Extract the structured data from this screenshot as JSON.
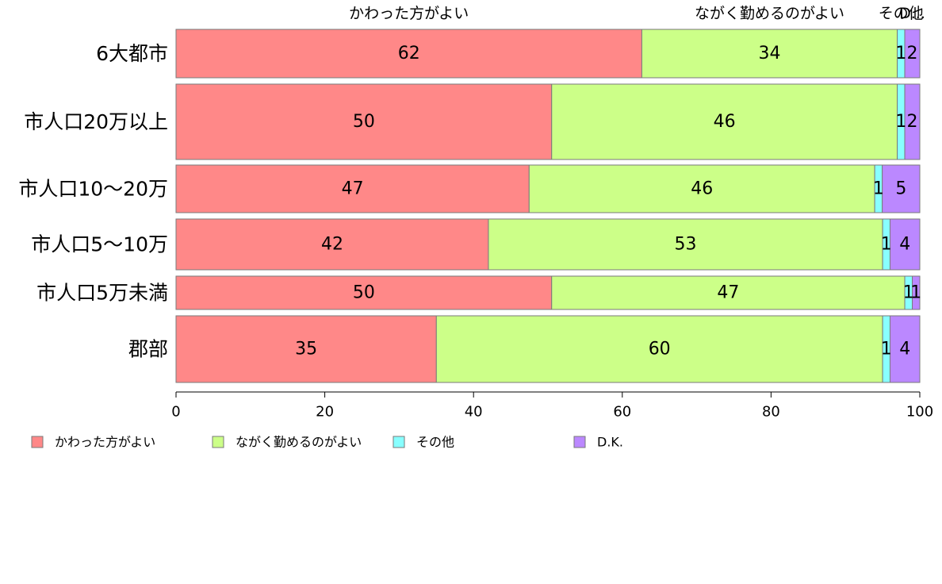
{
  "chart_data": {
    "type": "bar",
    "orientation": "horizontal",
    "stacked": true,
    "categories": [
      "6大都市",
      "市人口20万以上",
      "市人口10〜20万",
      "市人口5〜10万",
      "市人口5万未満",
      "郡部"
    ],
    "series": [
      {
        "name": "かわった方がよい",
        "values": [
          62,
          50,
          47,
          42,
          50,
          35
        ],
        "color": "#ff8888"
      },
      {
        "name": "ながく勤めるのがよい",
        "values": [
          34,
          46,
          46,
          53,
          47,
          60
        ],
        "color": "#ccff88"
      },
      {
        "name": "その他",
        "values": [
          1,
          1,
          1,
          1,
          1,
          1
        ],
        "color": "#88ffff"
      },
      {
        "name": "D.K.",
        "values": [
          2,
          2,
          5,
          4,
          1,
          4
        ],
        "color": "#bb88ff"
      }
    ],
    "data_labels": [
      [
        "62",
        "34",
        "1",
        "2"
      ],
      [
        "50",
        "46",
        "1",
        "2"
      ],
      [
        "47",
        "46",
        "1",
        "5"
      ],
      [
        "42",
        "53",
        "1",
        "4"
      ],
      [
        "50",
        "47",
        "1",
        "1"
      ],
      [
        "35",
        "60",
        "1",
        "4"
      ]
    ],
    "top_labels": [
      "かわった方がよい",
      "ながく勤めるのがよい",
      "その他",
      "D..."
    ],
    "xlim": [
      0,
      100
    ],
    "xticks": [
      0,
      20,
      40,
      60,
      80,
      100
    ],
    "xtick_labels": [
      "0",
      "20",
      "40",
      "60",
      "80",
      "100"
    ],
    "grid": false,
    "legend_position": "bottom"
  }
}
